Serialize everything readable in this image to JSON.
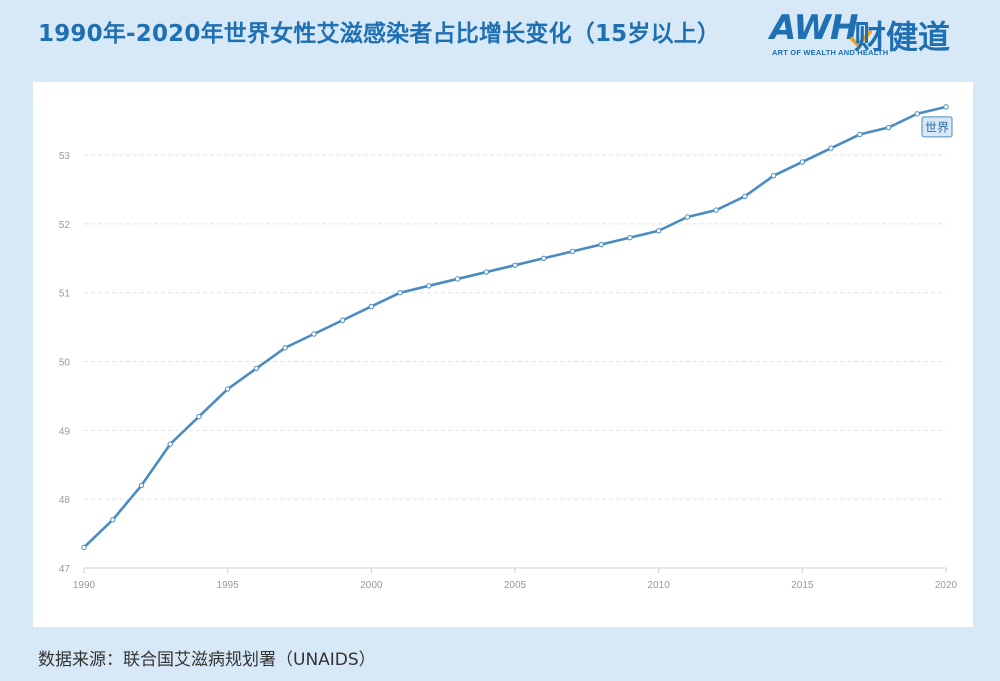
{
  "header": {
    "title": "1990年-2020年世界女性艾滋感染者占比增长变化（15岁以上）"
  },
  "logo": {
    "main": "AWH",
    "cn": "财健道",
    "sub": "ART OF WEALTH AND HEALTH"
  },
  "footer": {
    "source": "数据来源：联合国艾滋病规划署（UNAIDS）"
  },
  "colors": {
    "background": "#d7e9f6",
    "title": "#1f6fb3",
    "line": "#4a8bc2",
    "grid": "#e3e3e3"
  },
  "chart_data": {
    "type": "line",
    "title": "",
    "xlabel": "",
    "ylabel": "",
    "x": [
      1990,
      1991,
      1992,
      1993,
      1994,
      1995,
      1996,
      1997,
      1998,
      1999,
      2000,
      2001,
      2002,
      2003,
      2004,
      2005,
      2006,
      2007,
      2008,
      2009,
      2010,
      2011,
      2012,
      2013,
      2014,
      2015,
      2016,
      2017,
      2018,
      2019,
      2020
    ],
    "series": [
      {
        "name": "世界",
        "values": [
          47.3,
          47.7,
          48.2,
          48.8,
          49.2,
          49.6,
          49.9,
          50.2,
          50.4,
          50.6,
          50.8,
          51.0,
          51.1,
          51.2,
          51.3,
          51.4,
          51.5,
          51.6,
          51.7,
          51.8,
          51.9,
          52.1,
          52.2,
          52.4,
          52.7,
          52.9,
          53.1,
          53.3,
          53.4,
          53.6,
          53.7
        ]
      }
    ],
    "xlim": [
      1990,
      2020
    ],
    "ylim": [
      47,
      53.8
    ],
    "xticks": [
      1990,
      1995,
      2000,
      2005,
      2010,
      2015,
      2020
    ],
    "yticks": [
      47,
      48,
      49,
      50,
      51,
      52,
      53
    ],
    "grid": true,
    "legend": "end-of-line label"
  }
}
